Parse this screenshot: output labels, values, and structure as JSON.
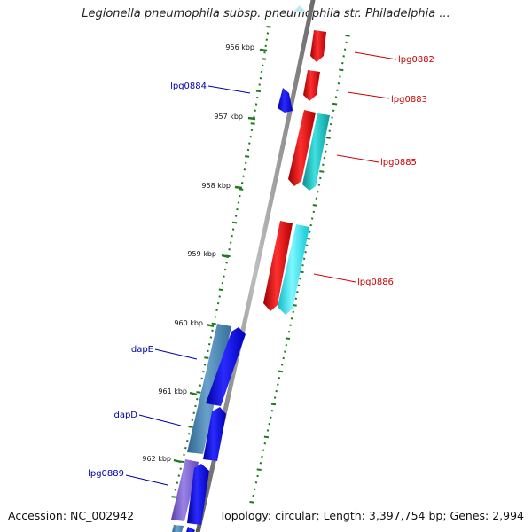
{
  "title": "Legionella pneumophila subsp. pneumophila str. Philadelphia ...",
  "footer": {
    "accession": "Accession: NC_002942",
    "topology": "Topology: circular; Length: 3,397,754 bp; Genes: 2,994"
  },
  "colors": {
    "backbone": "#8a8a8a",
    "tick": "#1e7a1e",
    "forward_gene": "#e60000",
    "forward_gene_alt": "#12b5b5",
    "reverse_gene": "#0000e0",
    "reverse_gene_alt": "#4a86b8",
    "reverse_gene_purple": "#7a5ccc",
    "forward_label": "#cc0000",
    "reverse_label": "#0000aa"
  },
  "ticks": [
    {
      "label": "956 kbp"
    },
    {
      "label": "957 kbp"
    },
    {
      "label": "958 kbp"
    },
    {
      "label": "959 kbp"
    },
    {
      "label": "960 kbp"
    },
    {
      "label": "961 kbp"
    },
    {
      "label": "962 kbp"
    }
  ],
  "gene_labels": [
    {
      "name": "lpg0882",
      "strand": "forward"
    },
    {
      "name": "lpg0883",
      "strand": "forward"
    },
    {
      "name": "lpg0884",
      "strand": "reverse"
    },
    {
      "name": "lpg0885",
      "strand": "forward"
    },
    {
      "name": "lpg0886",
      "strand": "forward"
    },
    {
      "name": "dapE",
      "strand": "reverse"
    },
    {
      "name": "dapD",
      "strand": "reverse"
    },
    {
      "name": "lpg0889",
      "strand": "reverse"
    }
  ]
}
